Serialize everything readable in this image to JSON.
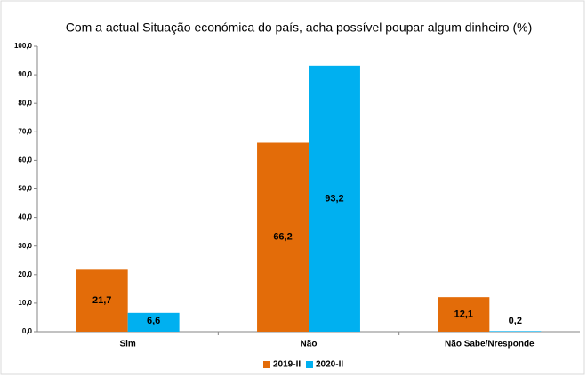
{
  "chart_data": {
    "type": "bar",
    "title": "Com a actual Situação económica do país, acha possível poupar algum dinheiro (%)",
    "categories": [
      "Sim",
      "Não",
      "Não Sabe/Nresponde"
    ],
    "series": [
      {
        "name": "2019-II",
        "color": "#e36c09",
        "values": [
          21.7,
          66.2,
          12.1
        ],
        "value_labels": [
          "21,7",
          "66,2",
          "12,1"
        ]
      },
      {
        "name": "2020-II",
        "color": "#00b0f0",
        "values": [
          6.6,
          93.2,
          0.2
        ],
        "value_labels": [
          "6,6",
          "93,2",
          "0,2"
        ]
      }
    ],
    "ylim": [
      0,
      100
    ],
    "yticks": [
      {
        "value": 0,
        "label": "0,0"
      },
      {
        "value": 10,
        "label": "10,0"
      },
      {
        "value": 20,
        "label": "20,0"
      },
      {
        "value": 30,
        "label": "30,0"
      },
      {
        "value": 40,
        "label": "40,0"
      },
      {
        "value": 50,
        "label": "50,0"
      },
      {
        "value": 60,
        "label": "60,0"
      },
      {
        "value": 70,
        "label": "70,0"
      },
      {
        "value": 80,
        "label": "80,0"
      },
      {
        "value": 90,
        "label": "90,0"
      },
      {
        "value": 100,
        "label": "100,0"
      }
    ],
    "grid": false,
    "legend": "bottom"
  }
}
